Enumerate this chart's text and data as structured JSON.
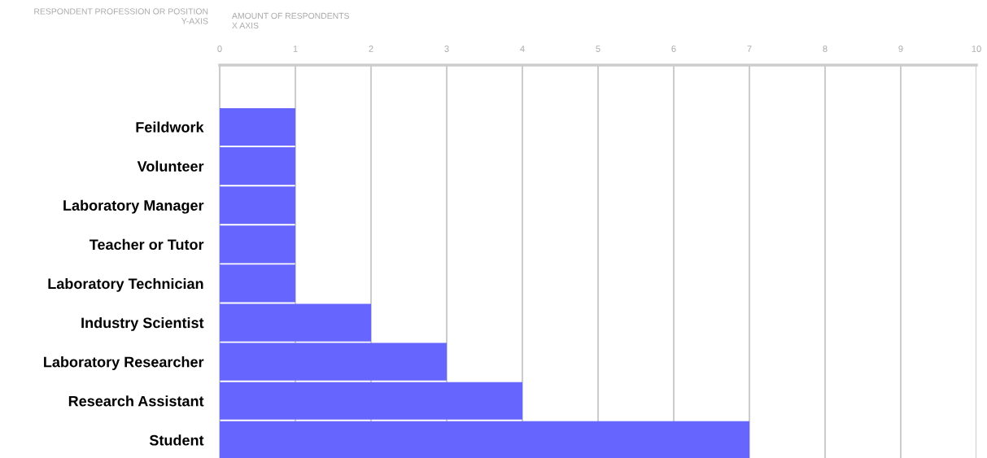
{
  "chart_data": {
    "type": "bar",
    "orientation": "horizontal",
    "ylabel": "RESPONDENT PROFESSION OR POSITION\nY-AXIS",
    "xlabel": "AMOUNT OF RESPONDENTS\nX AXIS",
    "categories": [
      "Feildwork",
      "Volunteer",
      "Laboratory Manager",
      "Teacher or Tutor",
      "Laboratory Technician",
      "Industry Scientist",
      "Laboratory Researcher",
      "Research Assistant",
      "Student"
    ],
    "values": [
      1,
      1,
      1,
      1,
      1,
      2,
      3,
      4,
      7
    ],
    "color": "#6666ff",
    "xlim": [
      0,
      10
    ],
    "xticks": [
      0,
      1,
      2,
      3,
      4,
      5,
      6,
      7,
      8,
      9,
      10
    ],
    "grid": "x",
    "legend": false
  }
}
